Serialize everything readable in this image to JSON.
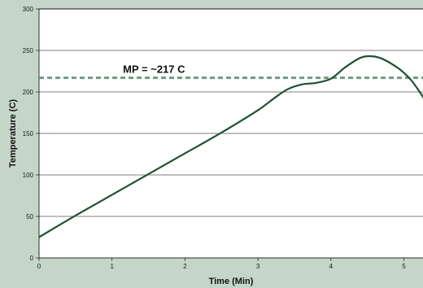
{
  "chart_data": {
    "type": "line",
    "xlabel": "Time (Min)",
    "ylabel": "Temperature (C)",
    "xlim": [
      0,
      5.35
    ],
    "ylim": [
      0,
      300
    ],
    "x_ticks": [
      "0",
      "1",
      "2",
      "3",
      "4",
      "5"
    ],
    "y_ticks": [
      "0",
      "50",
      "100",
      "150",
      "200",
      "250",
      "300"
    ],
    "grid": "horizontal",
    "colors": {
      "background": "#c5d6c9",
      "plot_area": "#ffffff",
      "line": "#1f5232",
      "reference_line": "#6f9a82",
      "grid": "#000000"
    },
    "series": [
      {
        "x": [
          0,
          0.5,
          1,
          1.5,
          2,
          2.5,
          3,
          3.2,
          3.4,
          3.6,
          3.8,
          4.0,
          4.2,
          4.4,
          4.55,
          4.7,
          4.9,
          5.0,
          5.1,
          5.2,
          5.35
        ],
        "y": [
          25,
          51,
          76,
          101,
          126,
          151,
          178,
          191,
          203,
          209,
          211,
          216,
          230,
          241,
          243,
          240,
          230,
          223,
          214,
          202,
          182
        ]
      }
    ],
    "reference_line": {
      "y": 217,
      "label": "MP = ~217 C",
      "style": "dashed"
    }
  }
}
